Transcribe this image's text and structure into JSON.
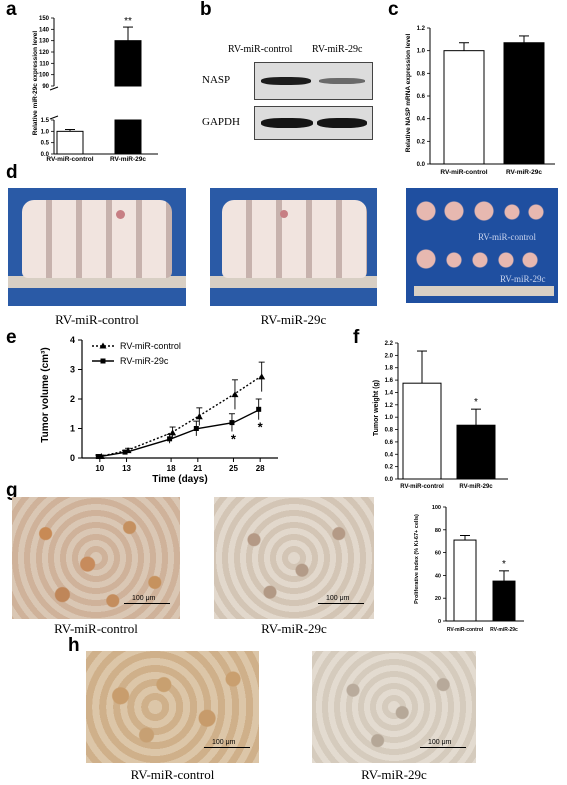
{
  "panels": {
    "a": {
      "label": "a",
      "chart_data": {
        "type": "bar",
        "categories": [
          "RV-miR-control",
          "RV-miR-29c"
        ],
        "values": [
          1.0,
          130
        ],
        "errors": [
          0.08,
          12
        ],
        "ylabel": "Relative miR-29c expression level",
        "ylim": [
          0,
          150
        ],
        "axis_break": [
          1.5,
          90
        ],
        "lower_ticks": [
          "0.0",
          "0.5",
          "1.0",
          "1.5"
        ],
        "upper_ticks": [
          "90",
          "100",
          "110",
          "120",
          "130",
          "140",
          "150"
        ],
        "significance": "**",
        "bar_fills": [
          "#ffffff",
          "#000000"
        ]
      }
    },
    "b": {
      "label": "b",
      "lane_labels": [
        "RV-miR-control",
        "RV-miR-29c"
      ],
      "bands": [
        "NASP",
        "GAPDH"
      ]
    },
    "c": {
      "label": "c",
      "chart_data": {
        "type": "bar",
        "categories": [
          "RV-miR-control",
          "RV-miR-29c"
        ],
        "values": [
          1.0,
          1.07
        ],
        "errors": [
          0.07,
          0.06
        ],
        "ylabel": "Relative NASP mRNA expression level",
        "ylim": [
          0,
          1.2
        ],
        "ticks": [
          "0.0",
          "0.2",
          "0.4",
          "0.6",
          "0.8",
          "1.0",
          "1.2"
        ],
        "bar_fills": [
          "#ffffff",
          "#000000"
        ]
      }
    },
    "d": {
      "label": "d",
      "captions": [
        "RV-miR-control",
        "RV-miR-29c"
      ],
      "tumor_labels": [
        "RV-miR-control",
        "RV-miR-29c"
      ]
    },
    "e": {
      "label": "e",
      "chart_data": {
        "type": "line",
        "x": [
          10,
          13,
          18,
          21,
          25,
          28
        ],
        "series": [
          {
            "name": "RV-miR-control",
            "values": [
              0.05,
              0.25,
              0.85,
              1.4,
              2.15,
              2.75
            ],
            "errors": [
              0.05,
              0.08,
              0.2,
              0.3,
              0.5,
              0.5
            ],
            "style": "dotted"
          },
          {
            "name": "RV-miR-29c",
            "values": [
              0.05,
              0.2,
              0.65,
              1.0,
              1.2,
              1.65
            ],
            "errors": [
              0.05,
              0.06,
              0.15,
              0.25,
              0.3,
              0.35
            ],
            "style": "solid"
          }
        ],
        "xlabel": "Time (days)",
        "ylabel": "Tumor volume (cm³)",
        "ylim": [
          0,
          4
        ],
        "xticks": [
          "10",
          "13",
          "18",
          "21",
          "25",
          "28"
        ],
        "yticks": [
          "0",
          "1",
          "2",
          "3",
          "4"
        ],
        "significance": [
          "*",
          "*"
        ],
        "legend_position": "top-left"
      }
    },
    "f": {
      "label": "f",
      "chart_data": {
        "type": "bar",
        "categories": [
          "RV-miR-control",
          "RV-miR-29c"
        ],
        "values": [
          1.55,
          0.87
        ],
        "errors": [
          0.52,
          0.26
        ],
        "ylabel": "Tumor weight (g)",
        "ylim": [
          0,
          2.2
        ],
        "ticks": [
          "0.0",
          "0.2",
          "0.4",
          "0.6",
          "0.8",
          "1.0",
          "1.2",
          "1.4",
          "1.6",
          "1.8",
          "2.0",
          "2.2"
        ],
        "significance": "*",
        "bar_fills": [
          "#ffffff",
          "#000000"
        ]
      }
    },
    "g": {
      "label": "g",
      "captions": [
        "RV-miR-control",
        "RV-miR-29c"
      ],
      "scalebar": "100 μm",
      "chart_data": {
        "type": "bar",
        "categories": [
          "RV-miR-control",
          "RV-miR-29c"
        ],
        "values": [
          71,
          35
        ],
        "errors": [
          4,
          9
        ],
        "ylabel": "Proliferative index (% Ki-67+ cells)",
        "ylim": [
          0,
          100
        ],
        "ticks": [
          "0",
          "20",
          "40",
          "60",
          "80",
          "100"
        ],
        "significance": "*",
        "bar_fills": [
          "#ffffff",
          "#000000"
        ]
      }
    },
    "h": {
      "label": "h",
      "captions": [
        "RV-miR-control",
        "RV-miR-29c"
      ],
      "scalebar": "100 μm"
    }
  },
  "colors": {
    "photo_blue": "#1f4fa0",
    "ihc_brown": "#c69a62",
    "ihc_background": "#d9d3c7"
  }
}
